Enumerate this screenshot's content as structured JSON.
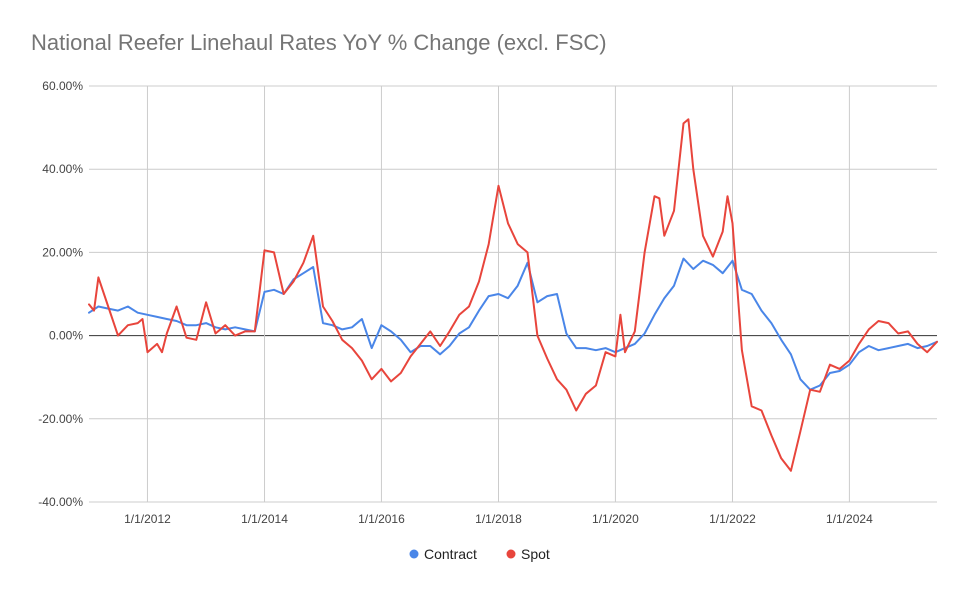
{
  "chart_data": {
    "type": "line",
    "title": "National Reefer Linehaul Rates YoY % Change (excl. FSC)",
    "xlabel": "",
    "ylabel": "",
    "x_tick_labels": [
      "1/1/2012",
      "1/1/2014",
      "1/1/2016",
      "1/1/2018",
      "1/1/2020",
      "1/1/2022",
      "1/1/2024"
    ],
    "y_tick_labels": [
      "60.00%",
      "40.00%",
      "20.00%",
      "0.00%",
      "-20.00%",
      "-40.00%"
    ],
    "ylim": [
      -40,
      60
    ],
    "xlim": [
      "2011-01-01",
      "2025-07-01"
    ],
    "grid": "vertical gridlines at tick years; zero line emphasized",
    "legend_position": "bottom",
    "colors": {
      "Contract": "#4a86e8",
      "Spot": "#e8453c"
    },
    "series": [
      {
        "name": "Contract",
        "points": [
          [
            "2011-01-01",
            5.5
          ],
          [
            "2011-03-01",
            7.0
          ],
          [
            "2011-05-01",
            6.5
          ],
          [
            "2011-07-01",
            6.0
          ],
          [
            "2011-09-01",
            7.0
          ],
          [
            "2011-11-01",
            5.5
          ],
          [
            "2012-01-01",
            5.0
          ],
          [
            "2012-03-01",
            4.5
          ],
          [
            "2012-05-01",
            4.0
          ],
          [
            "2012-07-01",
            3.5
          ],
          [
            "2012-09-01",
            2.5
          ],
          [
            "2012-11-01",
            2.5
          ],
          [
            "2013-01-01",
            3.0
          ],
          [
            "2013-03-01",
            2.0
          ],
          [
            "2013-05-01",
            1.5
          ],
          [
            "2013-07-01",
            2.0
          ],
          [
            "2013-09-01",
            1.5
          ],
          [
            "2013-11-01",
            1.0
          ],
          [
            "2014-01-01",
            10.5
          ],
          [
            "2014-03-01",
            11.0
          ],
          [
            "2014-05-01",
            10.0
          ],
          [
            "2014-07-01",
            13.5
          ],
          [
            "2014-09-01",
            15.0
          ],
          [
            "2014-11-01",
            16.5
          ],
          [
            "2015-01-01",
            3.0
          ],
          [
            "2015-03-01",
            2.5
          ],
          [
            "2015-05-01",
            1.5
          ],
          [
            "2015-07-01",
            2.0
          ],
          [
            "2015-09-01",
            4.0
          ],
          [
            "2015-11-01",
            -3.0
          ],
          [
            "2016-01-01",
            2.5
          ],
          [
            "2016-03-01",
            1.0
          ],
          [
            "2016-05-01",
            -1.0
          ],
          [
            "2016-07-01",
            -4.0
          ],
          [
            "2016-09-01",
            -2.5
          ],
          [
            "2016-11-01",
            -2.5
          ],
          [
            "2017-01-01",
            -4.5
          ],
          [
            "2017-03-01",
            -2.5
          ],
          [
            "2017-05-01",
            0.5
          ],
          [
            "2017-07-01",
            2.0
          ],
          [
            "2017-09-01",
            6.0
          ],
          [
            "2017-11-01",
            9.5
          ],
          [
            "2018-01-01",
            10.0
          ],
          [
            "2018-03-01",
            9.0
          ],
          [
            "2018-05-01",
            12.0
          ],
          [
            "2018-07-01",
            17.5
          ],
          [
            "2018-09-01",
            8.0
          ],
          [
            "2018-11-01",
            9.5
          ],
          [
            "2019-01-01",
            10.0
          ],
          [
            "2019-03-01",
            0.5
          ],
          [
            "2019-05-01",
            -3.0
          ],
          [
            "2019-07-01",
            -3.0
          ],
          [
            "2019-09-01",
            -3.5
          ],
          [
            "2019-11-01",
            -3.0
          ],
          [
            "2020-01-01",
            -4.0
          ],
          [
            "2020-03-01",
            -3.0
          ],
          [
            "2020-05-01",
            -2.0
          ],
          [
            "2020-07-01",
            0.5
          ],
          [
            "2020-09-01",
            5.0
          ],
          [
            "2020-11-01",
            9.0
          ],
          [
            "2021-01-01",
            12.0
          ],
          [
            "2021-03-01",
            18.5
          ],
          [
            "2021-05-01",
            16.0
          ],
          [
            "2021-07-01",
            18.0
          ],
          [
            "2021-09-01",
            17.0
          ],
          [
            "2021-11-01",
            15.0
          ],
          [
            "2022-01-01",
            18.0
          ],
          [
            "2022-03-01",
            11.0
          ],
          [
            "2022-05-01",
            10.0
          ],
          [
            "2022-07-01",
            6.0
          ],
          [
            "2022-09-01",
            3.0
          ],
          [
            "2022-11-01",
            -1.0
          ],
          [
            "2023-01-01",
            -4.5
          ],
          [
            "2023-03-01",
            -10.5
          ],
          [
            "2023-05-01",
            -13.0
          ],
          [
            "2023-07-01",
            -12.0
          ],
          [
            "2023-09-01",
            -9.0
          ],
          [
            "2023-11-01",
            -8.5
          ],
          [
            "2024-01-01",
            -7.0
          ],
          [
            "2024-03-01",
            -4.0
          ],
          [
            "2024-05-01",
            -2.5
          ],
          [
            "2024-07-01",
            -3.5
          ],
          [
            "2024-09-01",
            -3.0
          ],
          [
            "2024-11-01",
            -2.5
          ],
          [
            "2025-01-01",
            -2.0
          ],
          [
            "2025-03-01",
            -3.0
          ],
          [
            "2025-05-01",
            -2.5
          ],
          [
            "2025-07-01",
            -1.5
          ]
        ]
      },
      {
        "name": "Spot",
        "points": [
          [
            "2011-01-01",
            7.5
          ],
          [
            "2011-02-01",
            6.0
          ],
          [
            "2011-03-01",
            14.0
          ],
          [
            "2011-05-01",
            7.0
          ],
          [
            "2011-07-01",
            0.0
          ],
          [
            "2011-09-01",
            2.5
          ],
          [
            "2011-11-01",
            3.0
          ],
          [
            "2011-12-01",
            4.0
          ],
          [
            "2012-01-01",
            -4.0
          ],
          [
            "2012-03-01",
            -2.0
          ],
          [
            "2012-04-01",
            -4.0
          ],
          [
            "2012-05-01",
            0.5
          ],
          [
            "2012-07-01",
            7.0
          ],
          [
            "2012-09-01",
            -0.5
          ],
          [
            "2012-11-01",
            -1.0
          ],
          [
            "2013-01-01",
            8.0
          ],
          [
            "2013-03-01",
            0.5
          ],
          [
            "2013-05-01",
            2.5
          ],
          [
            "2013-07-01",
            0.0
          ],
          [
            "2013-09-01",
            1.0
          ],
          [
            "2013-11-01",
            1.0
          ],
          [
            "2014-01-01",
            20.5
          ],
          [
            "2014-03-01",
            20.0
          ],
          [
            "2014-05-01",
            10.0
          ],
          [
            "2014-07-01",
            13.0
          ],
          [
            "2014-09-01",
            17.5
          ],
          [
            "2014-11-01",
            24.0
          ],
          [
            "2015-01-01",
            7.0
          ],
          [
            "2015-03-01",
            3.5
          ],
          [
            "2015-05-01",
            -1.0
          ],
          [
            "2015-07-01",
            -3.0
          ],
          [
            "2015-09-01",
            -6.0
          ],
          [
            "2015-11-01",
            -10.5
          ],
          [
            "2016-01-01",
            -8.0
          ],
          [
            "2016-03-01",
            -11.0
          ],
          [
            "2016-05-01",
            -9.0
          ],
          [
            "2016-07-01",
            -5.0
          ],
          [
            "2016-09-01",
            -2.0
          ],
          [
            "2016-11-01",
            1.0
          ],
          [
            "2017-01-01",
            -2.5
          ],
          [
            "2017-03-01",
            1.0
          ],
          [
            "2017-05-01",
            5.0
          ],
          [
            "2017-07-01",
            7.0
          ],
          [
            "2017-09-01",
            13.0
          ],
          [
            "2017-11-01",
            22.0
          ],
          [
            "2018-01-01",
            36.0
          ],
          [
            "2018-03-01",
            27.0
          ],
          [
            "2018-05-01",
            22.0
          ],
          [
            "2018-07-01",
            20.0
          ],
          [
            "2018-09-01",
            0.0
          ],
          [
            "2018-11-01",
            -5.5
          ],
          [
            "2019-01-01",
            -10.5
          ],
          [
            "2019-03-01",
            -13.0
          ],
          [
            "2019-05-01",
            -18.0
          ],
          [
            "2019-07-01",
            -14.0
          ],
          [
            "2019-09-01",
            -12.0
          ],
          [
            "2019-11-01",
            -4.0
          ],
          [
            "2020-01-01",
            -5.0
          ],
          [
            "2020-02-01",
            5.0
          ],
          [
            "2020-03-01",
            -4.0
          ],
          [
            "2020-05-01",
            1.0
          ],
          [
            "2020-07-01",
            20.0
          ],
          [
            "2020-09-01",
            33.5
          ],
          [
            "2020-10-01",
            33.0
          ],
          [
            "2020-11-01",
            24.0
          ],
          [
            "2021-01-01",
            30.0
          ],
          [
            "2021-03-01",
            51.0
          ],
          [
            "2021-04-01",
            52.0
          ],
          [
            "2021-05-01",
            40.0
          ],
          [
            "2021-07-01",
            24.0
          ],
          [
            "2021-09-01",
            19.0
          ],
          [
            "2021-11-01",
            25.0
          ],
          [
            "2021-12-01",
            33.5
          ],
          [
            "2022-01-01",
            27.0
          ],
          [
            "2022-03-01",
            -3.5
          ],
          [
            "2022-05-01",
            -17.0
          ],
          [
            "2022-07-01",
            -18.0
          ],
          [
            "2022-09-01",
            -24.0
          ],
          [
            "2022-11-01",
            -29.5
          ],
          [
            "2023-01-01",
            -32.5
          ],
          [
            "2023-03-01",
            -23.0
          ],
          [
            "2023-05-01",
            -13.0
          ],
          [
            "2023-07-01",
            -13.5
          ],
          [
            "2023-09-01",
            -7.0
          ],
          [
            "2023-11-01",
            -8.0
          ],
          [
            "2024-01-01",
            -6.0
          ],
          [
            "2024-03-01",
            -2.0
          ],
          [
            "2024-05-01",
            1.5
          ],
          [
            "2024-07-01",
            3.5
          ],
          [
            "2024-09-01",
            3.0
          ],
          [
            "2024-11-01",
            0.5
          ],
          [
            "2025-01-01",
            1.0
          ],
          [
            "2025-03-01",
            -2.0
          ],
          [
            "2025-05-01",
            -4.0
          ],
          [
            "2025-07-01",
            -1.5
          ]
        ]
      }
    ]
  }
}
